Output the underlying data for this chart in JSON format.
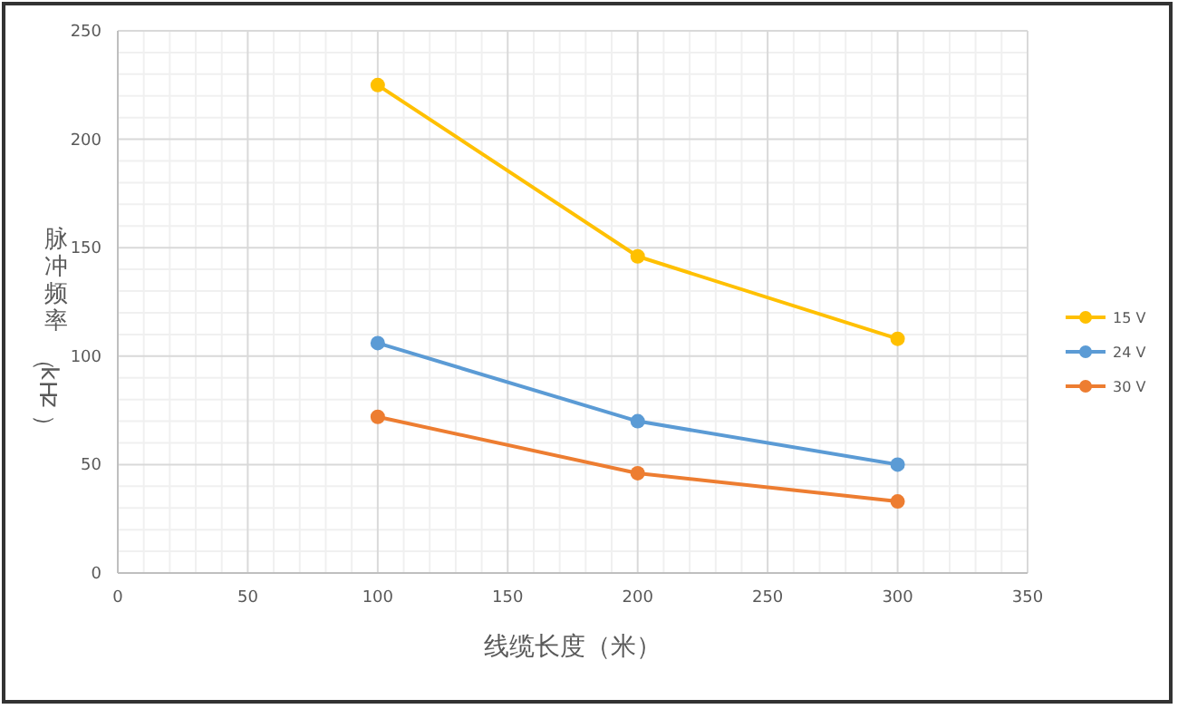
{
  "chart_data": {
    "type": "line",
    "xlabel": "线缆长度（米）",
    "ylabel": "脉冲频率（kHz）",
    "x": [
      100,
      200,
      300
    ],
    "series": [
      {
        "name": "15 V",
        "color": "#ffc000",
        "values": [
          225,
          146,
          108
        ]
      },
      {
        "name": "24 V",
        "color": "#5b9bd5",
        "values": [
          106,
          70,
          50
        ]
      },
      {
        "name": "30 V",
        "color": "#ed7d31",
        "values": [
          72,
          46,
          33
        ]
      }
    ],
    "xlim": [
      0,
      350
    ],
    "xticks": [
      0,
      50,
      100,
      150,
      200,
      250,
      300,
      350
    ],
    "ylim": [
      0,
      250
    ],
    "yticks": [
      0,
      50,
      100,
      150,
      200,
      250
    ],
    "grid": true,
    "legend": "right",
    "marker": "circle",
    "line_style": "solid"
  }
}
